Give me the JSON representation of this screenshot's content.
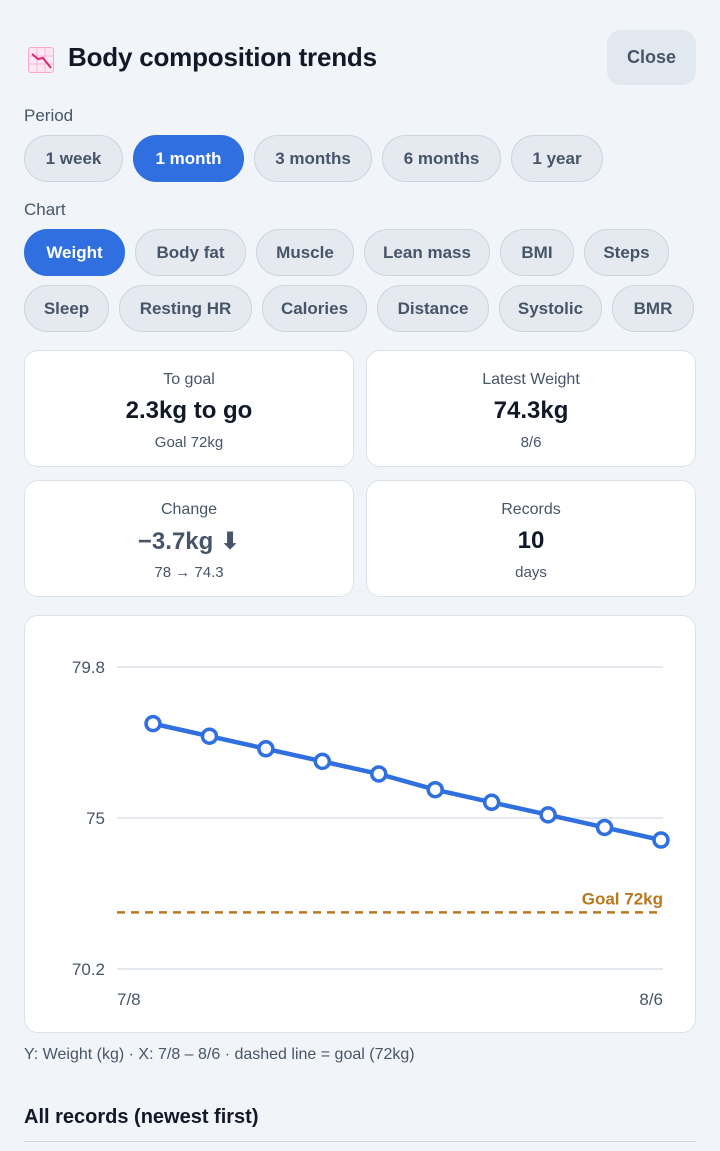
{
  "header": {
    "title": "Body composition trends",
    "close_label": "Close",
    "title_icon": "chart-decreasing-icon"
  },
  "period": {
    "label": "Period",
    "options": [
      "1 week",
      "1 month",
      "3 months",
      "6 months",
      "1 year"
    ],
    "selected": "1 month"
  },
  "chart_selector": {
    "label": "Chart",
    "options": [
      "Weight",
      "Body fat",
      "Muscle",
      "Lean mass",
      "BMI",
      "Steps",
      "Sleep",
      "Resting HR",
      "Calories",
      "Distance",
      "Systolic",
      "BMR"
    ],
    "selected": "Weight"
  },
  "stats": {
    "to_goal": {
      "label": "To goal",
      "value": "2.3kg to go",
      "sub": "Goal 72kg"
    },
    "latest": {
      "label": "Latest Weight",
      "value": "74.3kg",
      "sub": "8/6"
    },
    "change": {
      "label": "Change",
      "value": "−3.7kg ⬇",
      "sub": "78 → 74.3"
    },
    "records": {
      "label": "Records",
      "value": "10",
      "sub": "days"
    }
  },
  "chart_data": {
    "type": "line",
    "x": [
      "7/8",
      "",
      "",
      "",
      "",
      "",
      "",
      "",
      "",
      "8/6"
    ],
    "series": [
      {
        "values": [
          78.0,
          77.6,
          77.2,
          76.8,
          76.4,
          75.9,
          75.5,
          75.1,
          74.7,
          74.3
        ]
      }
    ],
    "x_tick_labels": [
      "7/8",
      "8/6"
    ],
    "y_ticks": [
      "79.8",
      "75",
      "70.2"
    ],
    "ylim": [
      70.2,
      79.8
    ],
    "goal": {
      "value": 72,
      "label": "Goal 72kg"
    },
    "grid": true,
    "colors": {
      "line": "#2f6fdf",
      "goal": "#b7791f",
      "grid": "#dbe2ea"
    }
  },
  "caption": "Y: Weight (kg) · X: 7/8 – 8/6 · dashed line = goal (72kg)",
  "records_section": {
    "title": "All records (newest first)"
  }
}
